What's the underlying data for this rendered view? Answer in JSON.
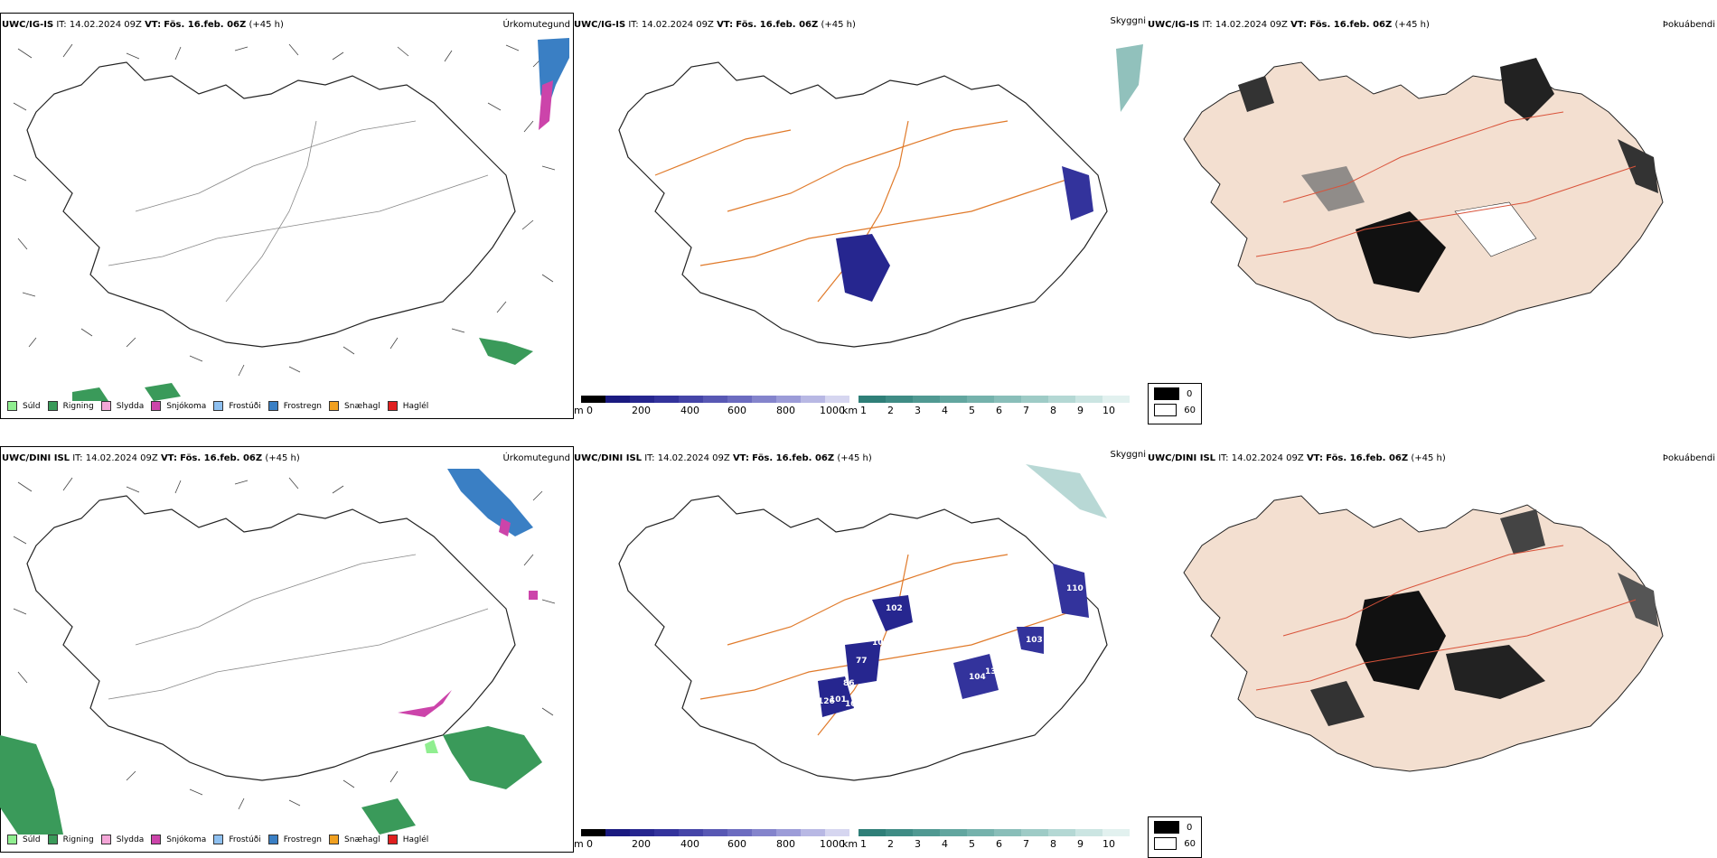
{
  "rows": [
    {
      "model": "UWC/IG-IS",
      "it_label": "IT:",
      "it_value": "14.02.2024 09Z",
      "vt_label": "VT:",
      "vt_value": "Fös. 16.feb. 06Z",
      "lead": "(+45 h)"
    },
    {
      "model": "UWC/DINI ISL",
      "it_label": "IT:",
      "it_value": "14.02.2024 09Z",
      "vt_label": "VT:",
      "vt_value": "Fös. 16.feb. 06Z",
      "lead": "(+45 h)"
    }
  ],
  "panel_titles": {
    "precip_type": "Úrkomutegund",
    "visibility": "Skyggni",
    "fog": "Þokuábendi"
  },
  "precip_legend": [
    {
      "label": "Súld",
      "color": "#90ee90"
    },
    {
      "label": "Rigning",
      "color": "#3a9a5a"
    },
    {
      "label": "Slydda",
      "color": "#f4a6d7"
    },
    {
      "label": "Snjókoma",
      "color": "#cc44aa"
    },
    {
      "label": "Frostúði",
      "color": "#8ec0f0"
    },
    {
      "label": "Frostregn",
      "color": "#3a7fc4"
    },
    {
      "label": "Snæhagl",
      "color": "#f0a020"
    },
    {
      "label": "Haglél",
      "color": "#e02020"
    }
  ],
  "visibility_bar_m": {
    "unit": "m",
    "ticks": [
      "0",
      "200",
      "400",
      "600",
      "800",
      "1000"
    ],
    "colors": [
      "#000000",
      "#1a1a80",
      "#26268f",
      "#33339c",
      "#4545a8",
      "#5858b4",
      "#6c6cc0",
      "#8484cc",
      "#9c9cd8",
      "#b8b8e4",
      "#d6d6f0"
    ]
  },
  "visibility_bar_km": {
    "unit": "km",
    "ticks": [
      "1",
      "2",
      "3",
      "4",
      "5",
      "6",
      "7",
      "8",
      "9",
      "10"
    ],
    "colors": [
      "#2f7f78",
      "#3f8c85",
      "#509992",
      "#62a69f",
      "#75b2ac",
      "#89beb9",
      "#9ecbc6",
      "#b4d8d4",
      "#cbe5e2",
      "#e2f1ef"
    ]
  },
  "fog_legend": [
    {
      "label": "0",
      "color": "#000000"
    },
    {
      "label": "60",
      "color": "#ffffff"
    }
  ],
  "vis_labels_row2": [
    "102",
    "110",
    "104",
    "101",
    "126",
    "101",
    "133",
    "104",
    "139",
    "103",
    "103",
    "77",
    "86"
  ]
}
